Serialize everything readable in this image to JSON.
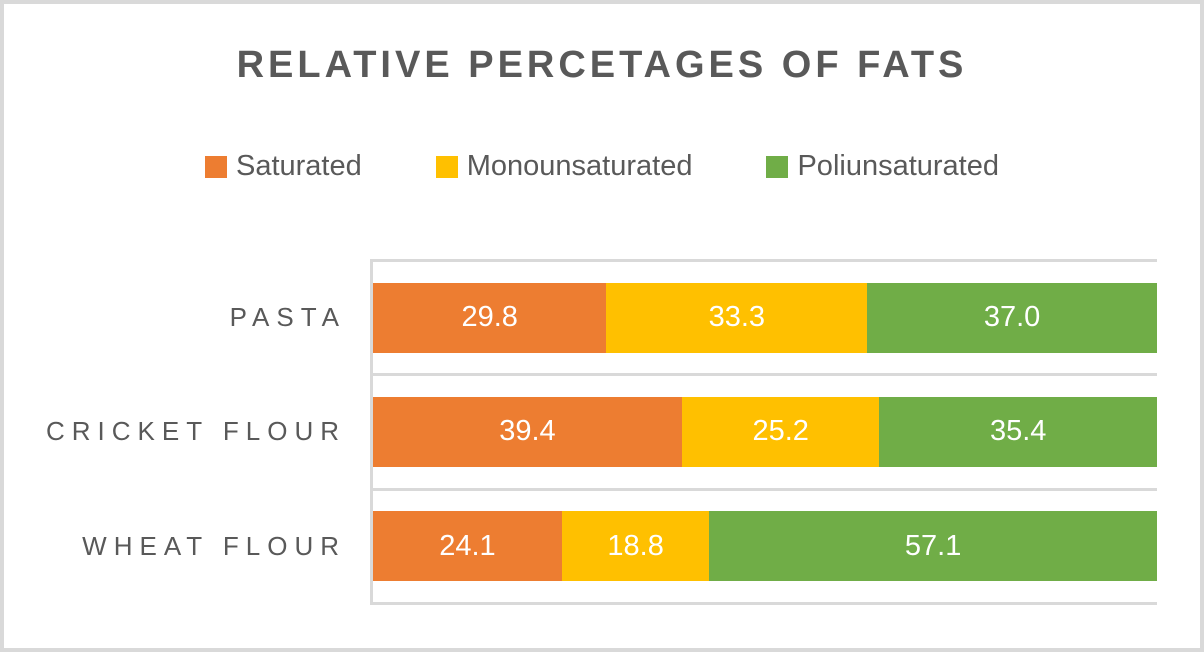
{
  "window": {
    "background": "#FFFFFF",
    "frame_border_color": "#D9D9D9"
  },
  "text_color": "#595959",
  "gridline_color": "#D9D9D9",
  "chart_data": {
    "type": "bar",
    "orientation": "horizontal",
    "stacked": true,
    "normalized_to_100": true,
    "title": "RELATIVE PERCETAGES OF FATS",
    "categories": [
      "PASTA",
      "CRICKET FLOUR",
      "WHEAT FLOUR"
    ],
    "series": [
      {
        "name": "Saturated",
        "color": "#ED7D31",
        "values": [
          29.8,
          39.4,
          24.1
        ]
      },
      {
        "name": "Monounsaturated",
        "color": "#FFC000",
        "values": [
          33.3,
          25.2,
          18.8
        ]
      },
      {
        "name": "Poliunsaturated",
        "color": "#70AD47",
        "values": [
          37.0,
          35.4,
          57.1
        ]
      }
    ],
    "xlim": [
      0,
      100
    ],
    "xlabel": "",
    "ylabel": "",
    "legend_position": "top",
    "data_labels": "inside center, one decimal, white",
    "axis_tick_labels": "none",
    "gridlines": "light gray separators between category bands"
  }
}
